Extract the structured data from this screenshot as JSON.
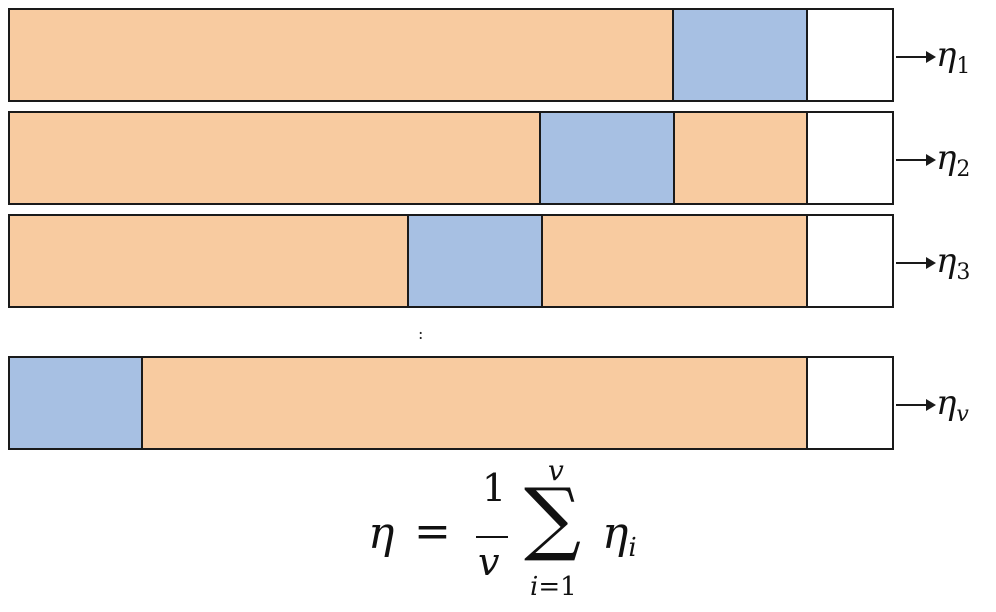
{
  "rows": [
    {
      "label_base": "η",
      "label_sub": "1"
    },
    {
      "label_base": "η",
      "label_sub": "2"
    },
    {
      "label_base": "η",
      "label_sub": "3"
    },
    {
      "label_base": "η",
      "label_sub": "v"
    }
  ],
  "ellipsis": ":",
  "formula": {
    "lhs": "η",
    "equals": "=",
    "numerator": "1",
    "denominator": "v",
    "sum_symbol": "∑",
    "sum_upper": "v",
    "sum_lower_var": "i",
    "sum_lower_rest": "=1",
    "term_base": "η",
    "term_sub": "i"
  },
  "colors": {
    "train_segment": "#f8cba0",
    "test_segment": "#a7c0e3",
    "empty_segment": "#ffffff",
    "border": "#1a1a1a"
  }
}
